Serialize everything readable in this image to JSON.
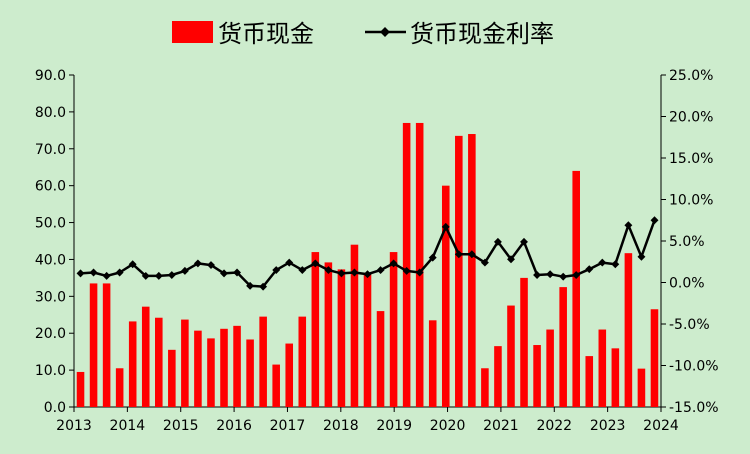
{
  "chart_data": {
    "type": "bar+line",
    "legend": {
      "placement": "top",
      "bar_label": "货币现金",
      "line_label": "货币现金利率"
    },
    "colors": {
      "bar": "#ff0000",
      "line": "#000000",
      "background": "#cdeccd"
    },
    "grid": false,
    "x_ticks": [
      "2013",
      "2014",
      "2015",
      "2016",
      "2017",
      "2018",
      "2019",
      "2020",
      "2021",
      "2022",
      "2023",
      "2024"
    ],
    "x_range": [
      2013,
      2024
    ],
    "y_left": {
      "range": [
        0,
        90
      ],
      "ticks": [
        "0.0",
        "10.0",
        "20.0",
        "30.0",
        "40.0",
        "50.0",
        "60.0",
        "70.0",
        "80.0",
        "90.0"
      ]
    },
    "y_right": {
      "range": [
        -15,
        25
      ],
      "ticks": [
        "-15.0%",
        "-10.0%",
        "-5.0%",
        "0.0%",
        "5.0%",
        "10.0%",
        "15.0%",
        "20.0%",
        "25.0%"
      ]
    },
    "series": [
      {
        "name": "货币现金",
        "axis": "left",
        "type": "bar",
        "values": [
          9.5,
          33.5,
          33.5,
          10.5,
          23.2,
          27.2,
          24.2,
          15.5,
          23.7,
          20.7,
          18.6,
          21.2,
          22.0,
          18.3,
          24.5,
          11.5,
          17.2,
          24.5,
          42.0,
          39.2,
          37.3,
          44.0,
          36.0,
          26.0,
          42.0,
          77.0,
          77.0,
          23.5,
          60.0,
          73.5,
          74.0,
          10.5,
          16.5,
          27.5,
          35.0,
          16.8,
          21.0,
          32.5,
          64.0,
          13.8,
          21.0,
          15.9,
          41.7,
          10.4,
          26.5
        ]
      },
      {
        "name": "货币现金利率",
        "axis": "right",
        "type": "line",
        "values": [
          1.1,
          1.2,
          0.8,
          1.2,
          2.2,
          0.8,
          0.8,
          0.9,
          1.4,
          2.3,
          2.1,
          1.1,
          1.2,
          -0.4,
          -0.5,
          1.5,
          2.4,
          1.5,
          2.3,
          1.5,
          1.1,
          1.2,
          1.0,
          1.5,
          2.3,
          1.4,
          1.2,
          3.0,
          6.7,
          3.4,
          3.4,
          2.4,
          4.9,
          2.8,
          4.9,
          0.9,
          1.0,
          0.7,
          0.9,
          1.6,
          2.4,
          2.2,
          6.9,
          3.1,
          7.5
        ]
      }
    ]
  }
}
